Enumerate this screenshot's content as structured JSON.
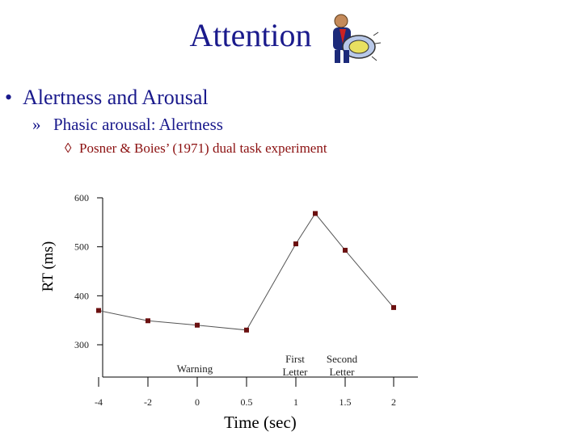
{
  "slide": {
    "title": "Attention",
    "bullet1": "Alertness and Arousal",
    "bullet2": "Phasic arousal: Alertness",
    "bullet3": "Posner & Boies’ (1971) dual task experiment",
    "bullet1_marker": "•",
    "bullet2_marker": "»",
    "bullet3_marker": "◊"
  },
  "chart_data": {
    "type": "line",
    "title": "",
    "xlabel": "Time (sec)",
    "ylabel": "RT (ms)",
    "x_ticks": [
      "-4",
      "-2",
      "0",
      "0.5",
      "1",
      "1.5",
      "2"
    ],
    "y_ticks": [
      300,
      400,
      500,
      600
    ],
    "ylim": [
      300,
      600
    ],
    "grid": false,
    "points": [
      {
        "x": "-4",
        "y": 370
      },
      {
        "x": "-2",
        "y": 349
      },
      {
        "x": "0",
        "y": 340
      },
      {
        "x": "0.5",
        "y": 330
      },
      {
        "x": "1",
        "y": 506
      },
      {
        "x": "1.25",
        "y": 568
      },
      {
        "x": "1.5",
        "y": 493
      },
      {
        "x": "2",
        "y": 376
      }
    ],
    "annotations": [
      {
        "text": "Warning",
        "x": "0"
      },
      {
        "text": "First\nLetter",
        "x": "1"
      },
      {
        "text": "Second\nLetter",
        "x": "1.5"
      }
    ],
    "colors": {
      "line": "#555555",
      "marker": "#6b1010"
    }
  }
}
